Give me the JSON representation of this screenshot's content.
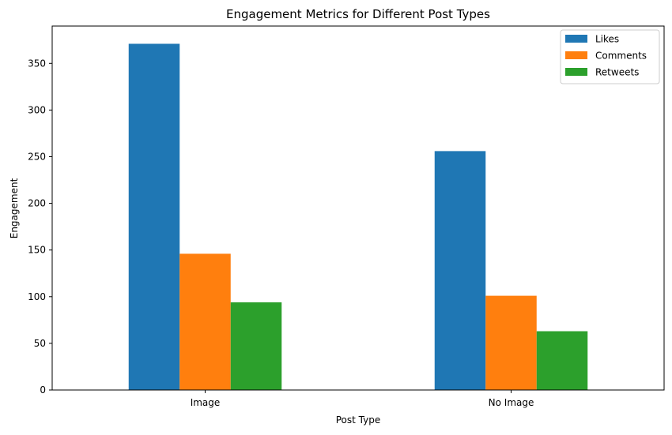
{
  "chart_data": {
    "type": "bar",
    "title": "Engagement Metrics for Different Post Types",
    "xlabel": "Post Type",
    "ylabel": "Engagement",
    "categories": [
      "Image",
      "No Image"
    ],
    "series": [
      {
        "name": "Likes",
        "values": [
          371,
          256
        ],
        "color": "#1f77b4"
      },
      {
        "name": "Comments",
        "values": [
          146,
          101
        ],
        "color": "#ff7f0e"
      },
      {
        "name": "Retweets",
        "values": [
          94,
          63
        ],
        "color": "#2ca02c"
      }
    ],
    "ylim": [
      0,
      390
    ],
    "yticks": [
      0,
      50,
      100,
      150,
      200,
      250,
      300,
      350
    ],
    "grid": false,
    "legend_position": "top-right"
  }
}
